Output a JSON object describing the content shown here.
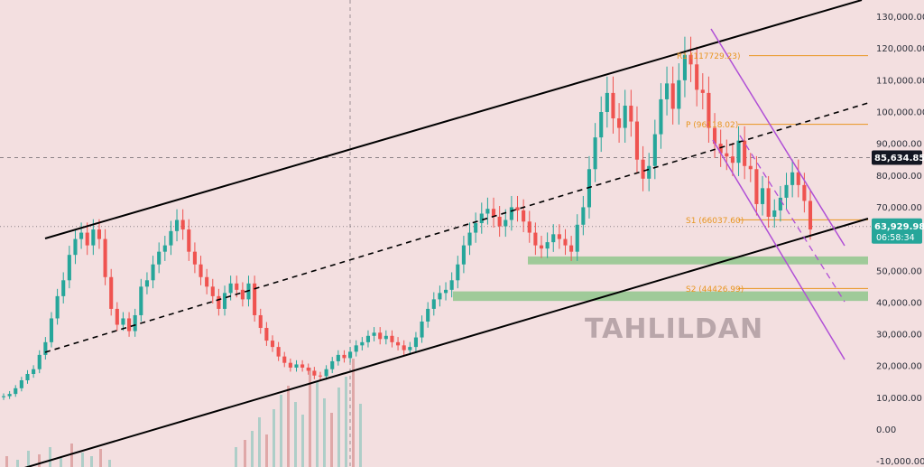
{
  "chart_data": {
    "type": "candlestick",
    "y_axis": {
      "range": [
        -10000,
        135000
      ],
      "ticks": [
        -10000,
        0,
        10000,
        20000,
        30000,
        40000,
        50000,
        60000,
        70000,
        80000,
        90000,
        100000,
        110000,
        120000,
        130000
      ],
      "tick_labels": [
        "-10,000.00",
        "0.00",
        "10,000.00",
        "20,000.00",
        "30,000.00",
        "40,000.00",
        "50,000.00",
        "60,000.00",
        "70,000.00",
        "80,000.00",
        "90,000.00",
        "100,000.00",
        "110,000.00",
        "120,000.00",
        "130,000.00"
      ]
    },
    "current_price": {
      "label": "63,929.98",
      "countdown": "06:58:34",
      "value": 63929.98
    },
    "crosshair_price": {
      "label": "85,634.85",
      "value": 85634.85
    },
    "pivot_levels": [
      {
        "label": "R1 (117729.23)",
        "value": 117729.23
      },
      {
        "label": "P (96118.02)",
        "value": 96118.02
      },
      {
        "label": "S1 (66037.60)",
        "value": 66037.6
      },
      {
        "label": "S2 (44426.99)",
        "value": 44426.99
      }
    ],
    "support_zones": [
      {
        "from": 52000,
        "to": 54500
      },
      {
        "from": 40500,
        "to": 43500
      }
    ],
    "closes": [
      10500,
      11200,
      13000,
      15500,
      17500,
      19000,
      23500,
      27500,
      35000,
      42000,
      47000,
      55000,
      60000,
      62000,
      58000,
      63000,
      60000,
      48000,
      38000,
      33000,
      35000,
      31000,
      36000,
      45000,
      47000,
      52000,
      56000,
      58000,
      62500,
      66000,
      63000,
      56000,
      52000,
      48000,
      45000,
      42000,
      38000,
      43000,
      46000,
      44000,
      41000,
      46000,
      36000,
      32000,
      28000,
      26000,
      23000,
      21000,
      19500,
      20500,
      19500,
      18500,
      17000,
      16800,
      19000,
      21500,
      23500,
      22500,
      24500,
      26500,
      27500,
      29500,
      30500,
      28500,
      29500,
      27500,
      26500,
      25000,
      26000,
      29000,
      34000,
      38000,
      41000,
      43000,
      44000,
      47000,
      52000,
      58000,
      62000,
      65000,
      68000,
      69500,
      67000,
      64000,
      66000,
      70000,
      69000,
      65500,
      62000,
      58000,
      57000,
      59000,
      61500,
      60000,
      58000,
      56000,
      64500,
      70000,
      82000,
      92000,
      100000,
      106000,
      98000,
      95000,
      102000,
      97000,
      85000,
      79000,
      83000,
      93000,
      104000,
      109000,
      101000,
      110000,
      118000,
      115000,
      107000,
      106000,
      95000,
      90000,
      87000,
      86000,
      84000,
      91000,
      83000,
      82000,
      71000,
      76000,
      67000,
      69000,
      73000,
      77000,
      81000,
      77000,
      72000,
      63000
    ],
    "watermark": "TAHLILDAN"
  },
  "colors": {
    "up": "#26a69a",
    "down": "#ef5350",
    "pivot": "#e8951f",
    "channel": "#b04fd6",
    "zone": "#8fc78c",
    "trend": "#000000"
  }
}
